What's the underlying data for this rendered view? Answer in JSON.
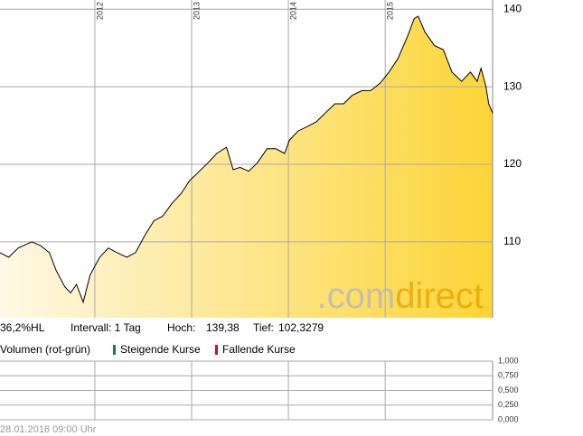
{
  "chart_data": [
    {
      "type": "area",
      "x": [
        2011.02,
        2011.11,
        2011.21,
        2011.35,
        2011.44,
        2011.53,
        2011.6,
        2011.69,
        2011.75,
        2011.81,
        2011.88,
        2011.95,
        2012.05,
        2012.14,
        2012.23,
        2012.33,
        2012.42,
        2012.52,
        2012.61,
        2012.7,
        2012.8,
        2012.89,
        2012.98,
        2013.08,
        2013.17,
        2013.26,
        2013.36,
        2013.43,
        2013.5,
        2013.59,
        2013.68,
        2013.78,
        2013.87,
        2013.96,
        2014.01,
        2014.1,
        2014.2,
        2014.29,
        2014.38,
        2014.48,
        2014.57,
        2014.66,
        2014.76,
        2014.85,
        2014.95,
        2015.04,
        2015.13,
        2015.23,
        2015.3,
        2015.34,
        2015.41,
        2015.51,
        2015.6,
        2015.69,
        2015.79,
        2015.88,
        2015.95,
        2015.99,
        2016.04,
        2016.07,
        2016.11
      ],
      "values": [
        108.6,
        108.0,
        109.2,
        110.0,
        109.5,
        108.6,
        106.3,
        104.2,
        103.4,
        104.5,
        102.2,
        105.7,
        108.0,
        109.2,
        108.6,
        108.0,
        108.6,
        110.9,
        112.7,
        113.3,
        115.0,
        116.2,
        117.9,
        119.1,
        120.2,
        121.4,
        122.2,
        119.3,
        119.6,
        119.1,
        120.2,
        122.0,
        122.0,
        121.4,
        123.1,
        124.3,
        124.9,
        125.5,
        126.6,
        127.8,
        127.8,
        128.9,
        129.5,
        129.5,
        130.5,
        131.9,
        133.6,
        136.5,
        138.8,
        139.1,
        137.1,
        135.3,
        134.8,
        131.9,
        130.7,
        131.9,
        130.7,
        132.4,
        130.1,
        127.8,
        126.6
      ],
      "color": "#000000",
      "gradient": [
        "#fff8e6",
        "#fcd537"
      ],
      "xlim": [
        2011.02,
        2016.11
      ],
      "xticks": [
        2012,
        2013,
        2014,
        2015
      ],
      "ylim": [
        100.2,
        141.2
      ],
      "yticks": [
        110,
        120,
        130,
        140
      ],
      "grid": true,
      "watermark": [
        ".com",
        "direct"
      ],
      "info": [
        "36,2%HL",
        "Intervall: 1 Tag",
        "Hoch:",
        "139,38",
        "Tief:",
        "102,3279"
      ]
    },
    {
      "type": "volume",
      "title": "Volumen (rot-grün)",
      "legend": [
        {
          "name": "Steigende Kurse",
          "color": "#1a7f3a"
        },
        {
          "name": "Fallende Kurse",
          "color": "#c0141c"
        }
      ],
      "ylim": [
        0,
        1
      ],
      "yticks": [
        {
          "value": 0,
          "label": "0,000"
        },
        {
          "value": 0.25,
          "label": "0,250"
        },
        {
          "value": 0.5,
          "label": "0,500"
        },
        {
          "value": 0.75,
          "label": "0,750"
        },
        {
          "value": 1,
          "label": "1,000"
        }
      ],
      "grid": true,
      "footer": "28.01.2016 09:00 Uhr"
    }
  ]
}
